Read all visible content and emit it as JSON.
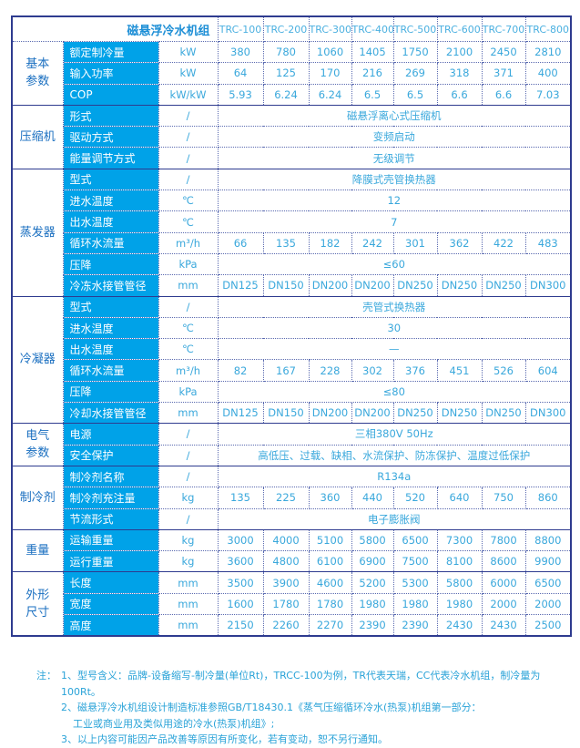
{
  "title": "磁悬浮冷水机组",
  "models": [
    "TRC-100",
    "TRC-200",
    "TRC-300",
    "TRC-400",
    "TRC-500",
    "TRC-600",
    "TRC-700",
    "TRC-800"
  ],
  "groups": [
    {
      "name": "基本参数",
      "rows": [
        {
          "param": "额定制冷量",
          "unit": "kW",
          "values": [
            "380",
            "780",
            "1060",
            "1405",
            "1750",
            "2100",
            "2450",
            "2810"
          ]
        },
        {
          "param": "输入功率",
          "unit": "kW",
          "values": [
            "64",
            "125",
            "170",
            "216",
            "269",
            "318",
            "371",
            "400"
          ]
        },
        {
          "param": "COP",
          "unit": "kW/kW",
          "values": [
            "5.93",
            "6.24",
            "6.24",
            "6.5",
            "6.5",
            "6.6",
            "6.6",
            "7.03"
          ]
        }
      ]
    },
    {
      "name": "压缩机",
      "rows": [
        {
          "param": "形式",
          "unit": "/",
          "span": "磁悬浮离心式压缩机"
        },
        {
          "param": "驱动方式",
          "unit": "/",
          "span": "变频启动"
        },
        {
          "param": "能量调节方式",
          "unit": "/",
          "span": "无级调节"
        }
      ]
    },
    {
      "name": "蒸发器",
      "rows": [
        {
          "param": "型式",
          "unit": "/",
          "span": "降膜式壳管换热器"
        },
        {
          "param": "进水温度",
          "unit": "℃",
          "span": "12"
        },
        {
          "param": "出水温度",
          "unit": "℃",
          "span": "7"
        },
        {
          "param": "循环水流量",
          "unit": "m³/h",
          "values": [
            "66",
            "135",
            "182",
            "242",
            "301",
            "362",
            "422",
            "483"
          ]
        },
        {
          "param": "压降",
          "unit": "kPa",
          "span": "≤60"
        },
        {
          "param": "冷冻水接管管径",
          "unit": "mm",
          "values": [
            "DN125",
            "DN150",
            "DN200",
            "DN200",
            "DN250",
            "DN250",
            "DN250",
            "DN300"
          ]
        }
      ]
    },
    {
      "name": "冷凝器",
      "rows": [
        {
          "param": "型式",
          "unit": "/",
          "span": "壳管式换热器"
        },
        {
          "param": "进水温度",
          "unit": "℃",
          "span": "30"
        },
        {
          "param": "出水温度",
          "unit": "℃",
          "span": "—"
        },
        {
          "param": "循环水流量",
          "unit": "m³/h",
          "values": [
            "82",
            "167",
            "228",
            "302",
            "376",
            "451",
            "526",
            "604"
          ]
        },
        {
          "param": "压降",
          "unit": "kPa",
          "span": "≤80"
        },
        {
          "param": "冷却水接管管径",
          "unit": "mm",
          "values": [
            "DN125",
            "DN150",
            "DN200",
            "DN200",
            "DN250",
            "DN250",
            "DN250",
            "DN300"
          ]
        }
      ]
    },
    {
      "name": "电气参数",
      "rows": [
        {
          "param": "电源",
          "unit": "/",
          "span": "三相380V 50Hz"
        },
        {
          "param": "安全保护",
          "unit": "/",
          "span": "高低压、过载、缺相、水流保护、防冻保护、温度过低保护"
        }
      ]
    },
    {
      "name": "制冷剂",
      "rows": [
        {
          "param": "制冷剂名称",
          "unit": "/",
          "span": "R134a"
        },
        {
          "param": "制冷剂充注量",
          "unit": "kg",
          "values": [
            "135",
            "225",
            "360",
            "440",
            "520",
            "640",
            "750",
            "860"
          ]
        },
        {
          "param": "节流形式",
          "unit": "/",
          "span": "电子膨胀阀"
        }
      ]
    },
    {
      "name": "重量",
      "rows": [
        {
          "param": "运输重量",
          "unit": "kg",
          "values": [
            "3000",
            "4000",
            "5100",
            "5800",
            "6500",
            "7300",
            "7800",
            "8800"
          ]
        },
        {
          "param": "运行重量",
          "unit": "kg",
          "values": [
            "3600",
            "4800",
            "6100",
            "6900",
            "7500",
            "8100",
            "8600",
            "9900"
          ]
        }
      ]
    },
    {
      "name": "外形尺寸",
      "rows": [
        {
          "param": "长度",
          "unit": "mm",
          "values": [
            "3500",
            "3900",
            "4600",
            "5200",
            "5300",
            "5800",
            "6000",
            "6500"
          ]
        },
        {
          "param": "宽度",
          "unit": "mm",
          "values": [
            "1600",
            "1780",
            "1780",
            "1980",
            "1980",
            "1980",
            "2000",
            "2000"
          ]
        },
        {
          "param": "高度",
          "unit": "mm",
          "values": [
            "2150",
            "2260",
            "2270",
            "2390",
            "2390",
            "2430",
            "2430",
            "2500"
          ]
        }
      ]
    }
  ],
  "notes": {
    "label": "注：",
    "n1": "1、型号含义：品牌-设备缩写-制冷量(单位Rt)，TRCC-100为例，TR代表天瑞，CC代表冷水机组，制冷量为100Rt。",
    "n2a": "2、磁悬浮冷水机组设计制造标准参照GB/T18430.1《蒸气压缩循环冷水(热泵)机组第一部分：",
    "n2b": "工业或商业用及类似用途的冷水(热泵)机组》;",
    "n3": "3、以上内容可能因产品改善等原因有所变化，若有变动，恕不另行通知。"
  },
  "colors": {
    "param_bg": "#00a2e8",
    "border": "#2e3b8f",
    "text": "#3aa8dc",
    "group_text": "#1a6fc0"
  }
}
